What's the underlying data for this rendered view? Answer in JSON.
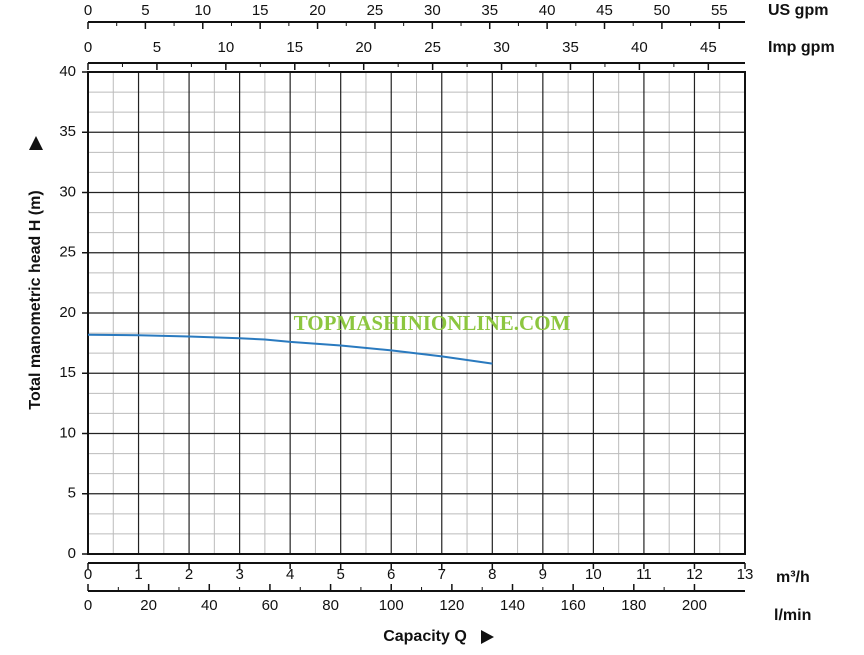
{
  "chart_data": {
    "type": "line",
    "x": [
      0,
      1,
      2,
      3,
      3.5,
      4,
      5,
      6,
      7,
      8
    ],
    "values": [
      18.2,
      18.15,
      18.05,
      17.9,
      17.8,
      17.6,
      17.3,
      16.9,
      16.4,
      15.8
    ],
    "color": "#2a7abf",
    "xlim": [
      0,
      13
    ],
    "xticks": [
      0,
      1,
      2,
      3,
      4,
      5,
      6,
      7,
      8,
      9,
      10,
      11,
      12,
      13
    ],
    "xlabel": "m³/h",
    "ylim": [
      0,
      40
    ],
    "yticks": [
      0,
      5,
      10,
      15,
      20,
      25,
      30,
      35,
      40
    ],
    "ylabel": "Total manometric head H (m)",
    "caption": "Capacity Q",
    "watermark": "TOPMASHINIONLINE.COM",
    "grid": true,
    "extra_axes": [
      {
        "label": "US gpm",
        "lim": [
          0,
          57.24
        ],
        "ticks": [
          0,
          5,
          10,
          15,
          20,
          25,
          30,
          35,
          40,
          45,
          50,
          55
        ]
      },
      {
        "label": "Imp gpm",
        "lim": [
          0,
          47.66
        ],
        "ticks": [
          0,
          5,
          10,
          15,
          20,
          25,
          30,
          35,
          40,
          45
        ]
      },
      {
        "label": "l/min",
        "lim": [
          0,
          216.67
        ],
        "ticks": [
          0,
          20,
          40,
          60,
          80,
          100,
          120,
          140,
          160,
          180,
          200
        ]
      }
    ]
  }
}
